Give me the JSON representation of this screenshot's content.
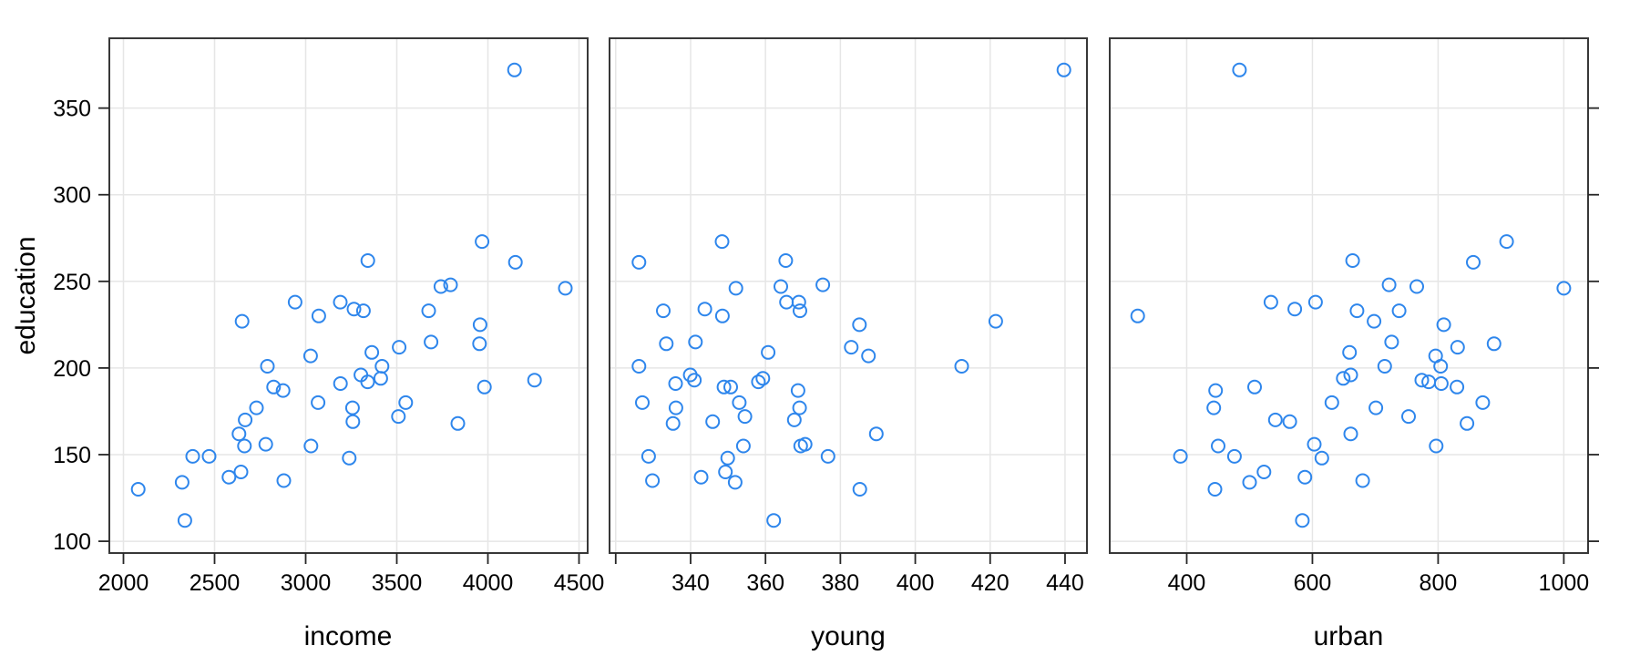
{
  "figure": {
    "background": "#ffffff",
    "point_color": "#2E86EC",
    "grid_color": "#e6e6e6",
    "border_color": "#383838",
    "tick_color": "#262626",
    "text_color": "#000000",
    "marker": "open-circle"
  },
  "chart_data": {
    "type": "scatter",
    "title": "",
    "ylabel": "education",
    "grid": true,
    "legend": "none",
    "y_ticks": [
      100,
      150,
      200,
      250,
      300,
      350
    ],
    "y_domain": [
      93.2,
      390.3
    ],
    "y": [
      189,
      169,
      230,
      168,
      180,
      193,
      261,
      214,
      201,
      172,
      194,
      189,
      233,
      209,
      262,
      234,
      177,
      177,
      187,
      148,
      196,
      248,
      247,
      246,
      180,
      149,
      155,
      149,
      156,
      191,
      140,
      137,
      112,
      130,
      134,
      162,
      135,
      155,
      238,
      170,
      238,
      192,
      227,
      207,
      201,
      225,
      215,
      233,
      273,
      372,
      212
    ],
    "panels": [
      {
        "xlabel": "income",
        "x_domain": [
          1922.5,
          4547.5
        ],
        "x_ticks": [
          2000,
          2500,
          3000,
          3500,
          4000,
          4500
        ],
        "x_unlabeled_ticks": [],
        "x": [
          2824,
          3259,
          3072,
          3835,
          3549,
          4256,
          4151,
          3954,
          3419,
          3509,
          3412,
          3981,
          3675,
          3363,
          3341,
          3265,
          3257,
          2730,
          2876,
          3239,
          3303,
          3795,
          3742,
          4425,
          3068,
          2470,
          2664,
          2380,
          2781,
          3191,
          2645,
          2579,
          2337,
          2081,
          2322,
          2634,
          2880,
          3029,
          2942,
          2668,
          3190,
          3340,
          2651,
          3027,
          2790,
          3957,
          3688,
          3317,
          3968,
          4146,
          3513
        ]
      },
      {
        "xlabel": "young",
        "x_domain": [
          318.35,
          445.85
        ],
        "x_ticks": [
          340,
          360,
          380,
          400,
          420,
          440
        ],
        "x_unlabeled_ticks": [
          320
        ],
        "x": [
          350.7,
          345.9,
          348.5,
          335.3,
          327.1,
          341.0,
          326.2,
          333.5,
          326.2,
          354.5,
          359.3,
          348.9,
          369.2,
          360.7,
          365.4,
          343.8,
          336.1,
          369.1,
          368.7,
          349.9,
          339.9,
          375.3,
          364.1,
          352.1,
          353.0,
          328.8,
          354.1,
          376.7,
          370.6,
          336.0,
          349.3,
          342.8,
          362.2,
          385.2,
          351.9,
          389.6,
          329.8,
          369.4,
          368.9,
          367.7,
          365.6,
          358.1,
          421.5,
          387.5,
          412.4,
          385.1,
          341.3,
          332.7,
          348.4,
          439.7,
          382.9
        ]
      },
      {
        "xlabel": "urban",
        "x_domain": [
          277.5,
          1038.6
        ],
        "x_ticks": [
          400,
          600,
          800,
          1000
        ],
        "x_unlabeled_ticks": [],
        "x": [
          508,
          564,
          322,
          846,
          871,
          774,
          856,
          889,
          715,
          753,
          649,
          830,
          738,
          659,
          664,
          572,
          701,
          443,
          446,
          615,
          661,
          722,
          766,
          1000,
          631,
          390,
          450,
          476,
          603,
          805,
          523,
          588,
          584,
          445,
          500,
          661,
          680,
          797,
          534,
          541,
          605,
          785,
          698,
          796,
          804,
          809,
          726,
          671,
          909,
          484,
          831
        ]
      }
    ]
  }
}
